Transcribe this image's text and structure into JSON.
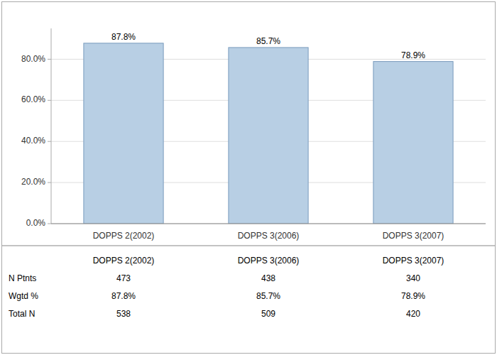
{
  "chart_data": {
    "type": "bar",
    "categories": [
      "DOPPS 2(2002)",
      "DOPPS 3(2006)",
      "DOPPS 3(2007)"
    ],
    "values": [
      87.8,
      85.7,
      78.9
    ],
    "value_labels": [
      "87.8%",
      "85.7%",
      "78.9%"
    ],
    "data_labels": true,
    "color": "#b8cfe4",
    "ylim": [
      0,
      95
    ],
    "yticks": [
      {
        "value": 0,
        "label": "0.0%"
      },
      {
        "value": 20,
        "label": "20.0%"
      },
      {
        "value": 40,
        "label": "40.0%"
      },
      {
        "value": 60,
        "label": "60.0%"
      },
      {
        "value": 80,
        "label": "80.0%"
      }
    ],
    "grid": true,
    "table": {
      "rows": [
        {
          "name": "N Ptnts",
          "values": [
            473,
            438,
            340
          ]
        },
        {
          "name": "Wgtd %",
          "values": [
            87.8,
            85.7,
            78.9
          ],
          "value_labels": [
            "87.8%",
            "85.7%",
            "78.9%"
          ]
        },
        {
          "name": "Total N",
          "values": [
            538,
            509,
            420
          ]
        }
      ]
    }
  }
}
